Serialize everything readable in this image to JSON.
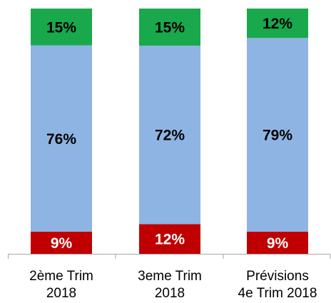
{
  "chart_data": {
    "type": "bar",
    "stacked": true,
    "percent": true,
    "categories": [
      [
        "2ème Trim",
        "2018"
      ],
      [
        "3eme Trim",
        "2018"
      ],
      [
        "Prévisions",
        "4e Trim  2018"
      ]
    ],
    "series": [
      {
        "values": [
          9,
          12,
          9
        ],
        "color": "#c00000",
        "label_color": "#ffffff"
      },
      {
        "values": [
          76,
          72,
          79
        ],
        "color": "#8eb4e3",
        "label_color": "#000000"
      },
      {
        "values": [
          15,
          15,
          12
        ],
        "color": "#1aa84c",
        "label_color": "#000000"
      }
    ],
    "data_labels": [
      [
        "9%",
        "12%",
        "9%"
      ],
      [
        "76%",
        "72%",
        "79%"
      ],
      [
        "15%",
        "15%",
        "12%"
      ]
    ],
    "ylim": [
      0,
      100
    ],
    "grid": false,
    "legend": "none",
    "title": "",
    "xlabel": "",
    "ylabel": ""
  }
}
